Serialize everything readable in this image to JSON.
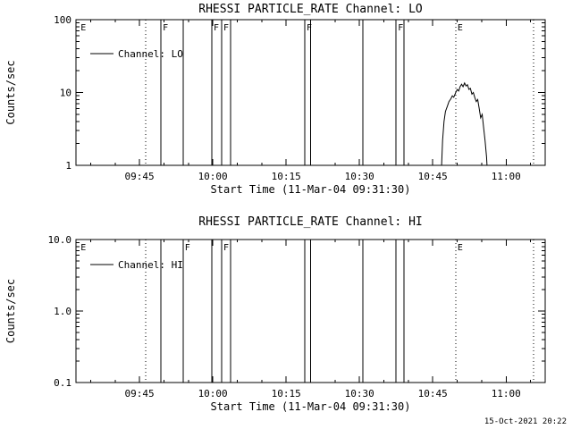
{
  "window": {
    "background": "#ffffff",
    "foreground": "#000000"
  },
  "footer": {
    "timestamp": "15-Oct-2021 20:22"
  },
  "time_axis": {
    "label": "Start Time (11-Mar-04 09:31:30)",
    "start_minutes": 2,
    "end_minutes": 98,
    "minor_tick_minutes": 5,
    "major_tick_every_minutes": 15,
    "ticks": [
      {
        "minutes": 15,
        "label": "09:45"
      },
      {
        "minutes": 30,
        "label": "10:00"
      },
      {
        "minutes": 45,
        "label": "10:15"
      },
      {
        "minutes": 60,
        "label": "10:30"
      },
      {
        "minutes": 75,
        "label": "10:45"
      },
      {
        "minutes": 90,
        "label": "11:00"
      }
    ]
  },
  "events": [
    {
      "time": "09:33",
      "minutes": 2.6,
      "style": "none",
      "label_top": "E",
      "label_bottom": "E"
    },
    {
      "time": "09:46",
      "minutes": 16.3,
      "style": "dotted",
      "label_top": "",
      "label_bottom": ""
    },
    {
      "time": "09:49",
      "minutes": 19.4,
      "style": "solid",
      "label_top": "F",
      "label_bottom": ""
    },
    {
      "time": "09:54",
      "minutes": 23.9,
      "style": "solid",
      "label_top": "",
      "label_bottom": "F"
    },
    {
      "time": "10:00",
      "minutes": 29.8,
      "style": "solid",
      "label_top": "F",
      "label_bottom": ""
    },
    {
      "time": "10:02",
      "minutes": 31.8,
      "style": "solid",
      "label_top": "F",
      "label_bottom": "F"
    },
    {
      "time": "10:04",
      "minutes": 33.6,
      "style": "solid",
      "label_top": "",
      "label_bottom": ""
    },
    {
      "time": "10:19",
      "minutes": 48.8,
      "style": "solid",
      "label_top": "F",
      "label_bottom": ""
    },
    {
      "time": "10:20",
      "minutes": 50.0,
      "style": "solid",
      "label_top": "",
      "label_bottom": ""
    },
    {
      "time": "10:31",
      "minutes": 60.7,
      "style": "solid",
      "label_top": "",
      "label_bottom": ""
    },
    {
      "time": "10:38",
      "minutes": 67.5,
      "style": "solid",
      "label_top": "F",
      "label_bottom": ""
    },
    {
      "time": "10:39",
      "minutes": 69.1,
      "style": "solid",
      "label_top": "",
      "label_bottom": ""
    },
    {
      "time": "10:50",
      "minutes": 79.7,
      "style": "dotted",
      "label_top": "E",
      "label_bottom": "E"
    },
    {
      "time": "11:06",
      "minutes": 95.6,
      "style": "dotted",
      "label_top": "",
      "label_bottom": ""
    }
  ],
  "chart_data": [
    {
      "type": "line",
      "title": "RHESSI PARTICLE_RATE Channel: LO",
      "xlabel": "Start Time (11-Mar-04 09:31:30)",
      "ylabel": "Counts/sec",
      "yscale": "log",
      "ylim": [
        1,
        100
      ],
      "yticks": [
        1,
        10,
        100
      ],
      "ytick_labels": [
        "1",
        "10",
        "100"
      ],
      "legend": "Channel: LO",
      "legend_position": "upper-left-inside",
      "grid": false,
      "series": [
        {
          "name": "Channel: LO",
          "points": [
            [
              76.8,
              1.0
            ],
            [
              77.0,
              2.2
            ],
            [
              77.3,
              4.0
            ],
            [
              77.6,
              5.5
            ],
            [
              78.0,
              6.5
            ],
            [
              78.3,
              7.5
            ],
            [
              78.7,
              8.2
            ],
            [
              79.0,
              9.0
            ],
            [
              79.3,
              8.6
            ],
            [
              79.7,
              10.0
            ],
            [
              80.0,
              11.0
            ],
            [
              80.3,
              10.5
            ],
            [
              80.6,
              12.0
            ],
            [
              80.9,
              13.0
            ],
            [
              81.2,
              12.0
            ],
            [
              81.5,
              13.5
            ],
            [
              81.8,
              12.3
            ],
            [
              82.1,
              12.8
            ],
            [
              82.4,
              11.0
            ],
            [
              82.7,
              11.4
            ],
            [
              83.0,
              9.5
            ],
            [
              83.3,
              10.0
            ],
            [
              83.6,
              8.5
            ],
            [
              83.9,
              7.5
            ],
            [
              84.2,
              8.0
            ],
            [
              84.5,
              6.0
            ],
            [
              84.8,
              4.5
            ],
            [
              85.1,
              5.0
            ],
            [
              85.4,
              3.3
            ],
            [
              85.7,
              2.2
            ],
            [
              86.0,
              1.3
            ],
            [
              86.1,
              1.0
            ]
          ]
        }
      ]
    },
    {
      "type": "line",
      "title": "RHESSI PARTICLE_RATE Channel: HI",
      "xlabel": "Start Time (11-Mar-04 09:31:30)",
      "ylabel": "Counts/sec",
      "yscale": "log",
      "ylim": [
        0.1,
        10
      ],
      "yticks": [
        0.1,
        1,
        10
      ],
      "ytick_labels": [
        "0.1",
        "1.0",
        "10.0"
      ],
      "legend": "Channel: HI",
      "legend_position": "upper-left-inside",
      "grid": false,
      "series": [
        {
          "name": "Channel: HI",
          "points": []
        }
      ]
    }
  ]
}
